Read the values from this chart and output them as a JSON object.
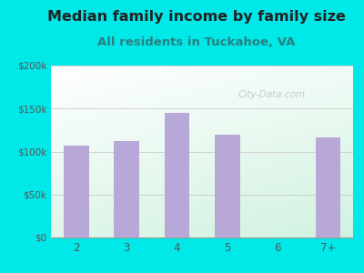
{
  "title": "Median family income by family size",
  "subtitle": "All residents in Tuckahoe, VA",
  "categories": [
    "2",
    "3",
    "4",
    "5",
    "6",
    "7+"
  ],
  "values": [
    107000,
    112000,
    145000,
    120000,
    0,
    116000
  ],
  "bar_color": "#b8a8d8",
  "title_color": "#222222",
  "subtitle_color": "#2a8080",
  "outer_bg_color": "#00e8e8",
  "ylim": [
    0,
    200000
  ],
  "yticks": [
    0,
    50000,
    100000,
    150000,
    200000
  ],
  "ytick_labels": [
    "$0",
    "$50k",
    "$100k",
    "$150k",
    "$200k"
  ],
  "watermark": "City-Data.com",
  "title_fontsize": 11.5,
  "subtitle_fontsize": 9.5
}
